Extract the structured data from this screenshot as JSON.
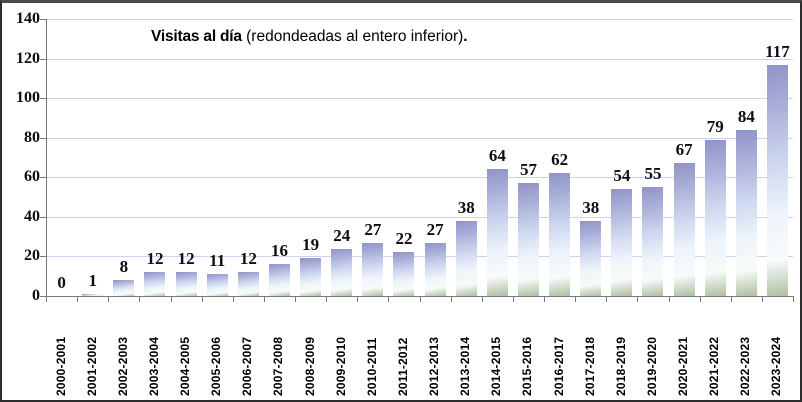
{
  "chart_data": {
    "type": "bar",
    "title_bold": "Visitas al día",
    "title_normal": " (redondeadas al entero inferior)",
    "title_suffix": ".",
    "categories": [
      "2000-2001",
      "2001-2002",
      "2002-2003",
      "2003-2004",
      "2004-2005",
      "2005-2006",
      "2006-2007",
      "2007-2008",
      "2008-2009",
      "2009-2010",
      "2010-2011",
      "2011-2012",
      "2012-2013",
      "2013-2014",
      "2014-2015",
      "2015-2016",
      "2016-2017",
      "2017-2018",
      "2018-2019",
      "2019-2020",
      "2020-2021",
      "2021-2022",
      "2022-2023",
      "2023-2024"
    ],
    "values": [
      0,
      1,
      8,
      12,
      12,
      11,
      12,
      16,
      19,
      24,
      27,
      22,
      27,
      38,
      64,
      57,
      62,
      38,
      54,
      55,
      67,
      79,
      84,
      117
    ],
    "xlabel": "",
    "ylabel": "",
    "ylim": [
      0,
      140
    ],
    "yticks": [
      0,
      20,
      40,
      60,
      80,
      100,
      120,
      140
    ],
    "grid": true,
    "legend": "none",
    "data_labels": true,
    "colors": {
      "bar_top": "#9193c8",
      "bar_upper": "#a9aed8",
      "bar_mid": "#cdd6ee",
      "bar_light": "#eef4fb",
      "bar_bottom_white": "#f7fbf9",
      "bar_bottom_tint": "#aebfa2",
      "gridline": "#c9d3ec",
      "axis": "#7a7a7a",
      "label_text": "#0d0d14",
      "background": "#ffffff",
      "frame_border": "#2e2e2e"
    }
  }
}
